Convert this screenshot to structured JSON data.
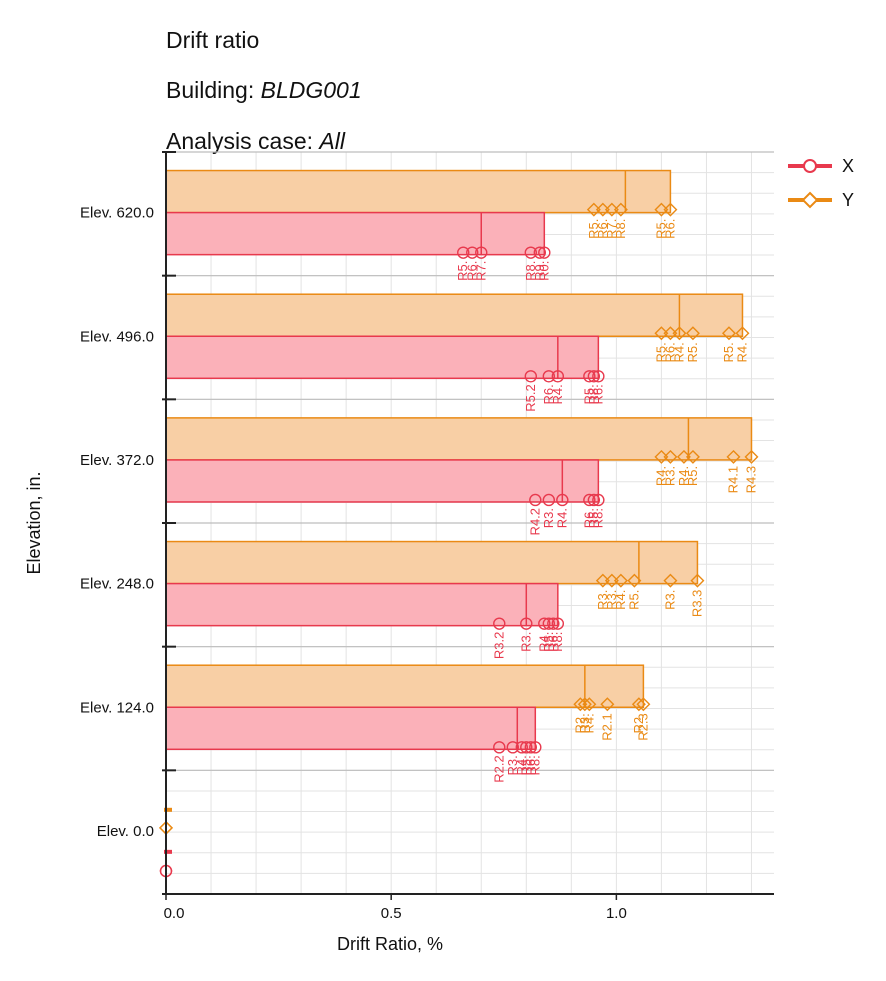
{
  "header": {
    "title": "Drift ratio",
    "building_label": "Building: ",
    "building_value": "BLDG001",
    "case_label": "Analysis case: ",
    "case_value": "All"
  },
  "colors": {
    "x_bar_fill": "#fbb1b9",
    "x_stroke": "#e8394d",
    "y_bar_fill": "#f8cfa5",
    "y_stroke": "#ea8a14",
    "grid": "#e3e3e3",
    "axis": "#222222"
  },
  "chart_data": {
    "type": "bar",
    "orientation": "horizontal",
    "xlabel": "Drift Ratio, %",
    "ylabel": "Elevation, in.",
    "xlim": [
      0,
      1.35
    ],
    "x_ticks": [
      0.0,
      0.5,
      1.0
    ],
    "x_tick_labels": [
      "0.0",
      "0.5",
      "1.0"
    ],
    "grid": true,
    "legend_position": "top-right",
    "categories": [
      "Elev. 620.0",
      "Elev. 496.0",
      "Elev. 372.0",
      "Elev. 248.0",
      "Elev. 124.0",
      "Elev. 0.0"
    ],
    "series": [
      {
        "name": "X",
        "marker": "circle",
        "values": [
          0.84,
          0.96,
          0.96,
          0.87,
          0.82,
          0.0
        ],
        "step_values": [
          0.7,
          0.87,
          0.88,
          0.8,
          0.78,
          0.0
        ],
        "points": [
          [
            0.66,
            0.68,
            0.7,
            0.81,
            0.83,
            0.84
          ],
          [
            0.81,
            0.85,
            0.87,
            0.94,
            0.95,
            0.96
          ],
          [
            0.82,
            0.85,
            0.88,
            0.94,
            0.95,
            0.96
          ],
          [
            0.74,
            0.8,
            0.84,
            0.85,
            0.86,
            0.87
          ],
          [
            0.74,
            0.77,
            0.79,
            0.8,
            0.81,
            0.82
          ],
          [
            0.0,
            0.0
          ]
        ],
        "point_labels": [
          [
            "R5.",
            "R6.",
            "R7.",
            "R8.",
            "R9.",
            "R0."
          ],
          [
            "R5.2",
            "R6.",
            "R4.",
            "R5.",
            "R8.",
            "R6."
          ],
          [
            "R4.2",
            "R3.",
            "R4.",
            "R6.",
            "R5.",
            "R8."
          ],
          [
            "R3.2",
            "R3.",
            "R4.",
            "R5.",
            "R6.",
            "R8."
          ],
          [
            "R2.2",
            "R3.",
            "R4.",
            "R5.",
            "R6.",
            "R8."
          ],
          [
            "",
            ""
          ]
        ]
      },
      {
        "name": "Y",
        "marker": "diamond",
        "values": [
          1.12,
          1.28,
          1.3,
          1.18,
          1.06,
          0.0
        ],
        "step_values": [
          1.02,
          1.14,
          1.16,
          1.05,
          0.93,
          0.0
        ],
        "points": [
          [
            0.95,
            0.97,
            0.99,
            1.01,
            1.1,
            1.12
          ],
          [
            1.1,
            1.12,
            1.14,
            1.17,
            1.25,
            1.28
          ],
          [
            1.1,
            1.12,
            1.15,
            1.17,
            1.26,
            1.3
          ],
          [
            0.97,
            0.99,
            1.01,
            1.04,
            1.12,
            1.18
          ],
          [
            0.92,
            0.93,
            0.94,
            0.98,
            1.05,
            1.06
          ],
          [
            0.0,
            0.0
          ]
        ],
        "point_labels": [
          [
            "R5.",
            "R6.",
            "R7.",
            "R8.",
            "R5.",
            "R6."
          ],
          [
            "R5.",
            "R6.",
            "R4.",
            "R5.",
            "R5.",
            "R4."
          ],
          [
            "R4.",
            "R3.",
            "R4.",
            "R5.",
            "R4.1",
            "R4.3"
          ],
          [
            "R3.",
            "R3.",
            "R4.",
            "R5.",
            "R3.",
            "R3.3"
          ],
          [
            "R2.",
            "R3.",
            "R4.",
            "R2.1",
            "R2.",
            "R2.3"
          ],
          [
            "",
            ""
          ]
        ]
      }
    ]
  }
}
